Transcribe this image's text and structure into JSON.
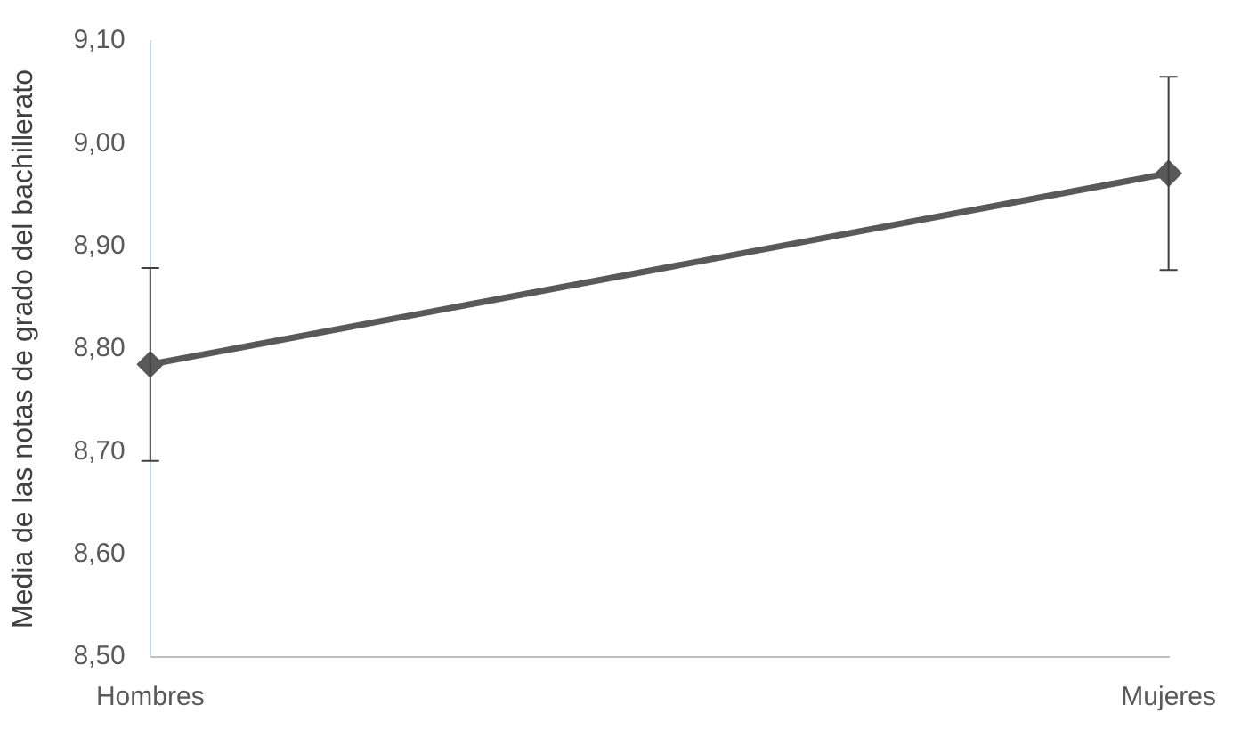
{
  "chart_data": {
    "type": "line",
    "ylabel": "Media de las notas de grado del bachillerato",
    "categories": [
      "Hombres",
      "Mujeres"
    ],
    "series": [
      {
        "color": "#595959",
        "values": [
          8.785,
          8.971
        ],
        "errors": [
          0.094,
          0.094
        ]
      }
    ],
    "ylim": [
      8.5,
      9.1
    ],
    "yticks": [
      {
        "value": 8.5,
        "label": "8,50"
      },
      {
        "value": 8.6,
        "label": "8,60"
      },
      {
        "value": 8.7,
        "label": "8,70"
      },
      {
        "value": 8.8,
        "label": "8,80"
      },
      {
        "value": 8.9,
        "label": "8,90"
      },
      {
        "value": 9.0,
        "label": "9,00"
      },
      {
        "value": 9.1,
        "label": "9,10"
      }
    ],
    "grid": false,
    "legend": false,
    "marker": "diamond",
    "line_style": "solid"
  }
}
